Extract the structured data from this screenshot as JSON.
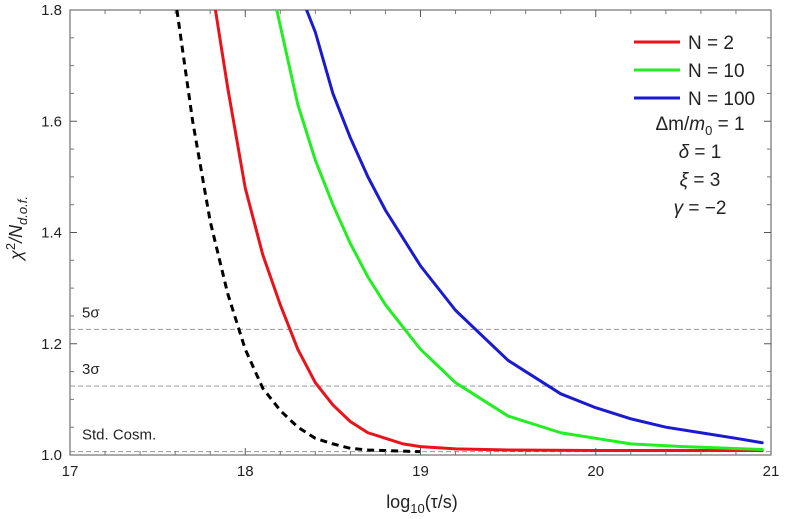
{
  "chart_data": {
    "type": "line",
    "xlabel_parts": {
      "pre": "log",
      "sub": "10",
      "post": "(τ/s)"
    },
    "ylabel_parts": {
      "base": "χ",
      "sup": "2",
      "slash": "/N",
      "sub": "d.o.f."
    },
    "xlim": [
      17,
      21
    ],
    "ylim": [
      1.0,
      1.8
    ],
    "x_ticks": [
      "17",
      "18",
      "19",
      "20",
      "21"
    ],
    "y_ticks": [
      "1.0",
      "1.2",
      "1.4",
      "1.6",
      "1.8"
    ],
    "reference_lines": [
      {
        "label": "5σ",
        "y": 1.226
      },
      {
        "label": "3σ",
        "y": 1.124
      },
      {
        "label": "Std. Cosm.",
        "y": 1.006
      }
    ],
    "series": [
      {
        "name": "N = 2",
        "color": "#e8131b",
        "dashed": false,
        "points": [
          [
            17.83,
            1.8
          ],
          [
            17.9,
            1.66
          ],
          [
            18.0,
            1.48
          ],
          [
            18.1,
            1.36
          ],
          [
            18.2,
            1.27
          ],
          [
            18.3,
            1.19
          ],
          [
            18.4,
            1.13
          ],
          [
            18.5,
            1.09
          ],
          [
            18.6,
            1.06
          ],
          [
            18.7,
            1.04
          ],
          [
            18.8,
            1.03
          ],
          [
            18.9,
            1.02
          ],
          [
            19.0,
            1.015
          ],
          [
            19.2,
            1.011
          ],
          [
            19.5,
            1.009
          ],
          [
            20.0,
            1.008
          ],
          [
            20.5,
            1.008
          ],
          [
            20.95,
            1.008
          ]
        ]
      },
      {
        "name": "N = 10",
        "color": "#22ee22",
        "dashed": false,
        "points": [
          [
            18.18,
            1.8
          ],
          [
            18.3,
            1.63
          ],
          [
            18.4,
            1.53
          ],
          [
            18.5,
            1.45
          ],
          [
            18.6,
            1.38
          ],
          [
            18.7,
            1.32
          ],
          [
            18.8,
            1.27
          ],
          [
            18.9,
            1.23
          ],
          [
            19.0,
            1.19
          ],
          [
            19.1,
            1.16
          ],
          [
            19.2,
            1.13
          ],
          [
            19.3,
            1.11
          ],
          [
            19.4,
            1.09
          ],
          [
            19.5,
            1.07
          ],
          [
            19.6,
            1.06
          ],
          [
            19.8,
            1.04
          ],
          [
            20.0,
            1.03
          ],
          [
            20.2,
            1.02
          ],
          [
            20.5,
            1.015
          ],
          [
            20.95,
            1.01
          ]
        ]
      },
      {
        "name": "N = 100",
        "color": "#1a1ad0",
        "dashed": false,
        "points": [
          [
            18.35,
            1.8
          ],
          [
            18.4,
            1.76
          ],
          [
            18.5,
            1.65
          ],
          [
            18.6,
            1.57
          ],
          [
            18.7,
            1.5
          ],
          [
            18.8,
            1.44
          ],
          [
            18.9,
            1.39
          ],
          [
            19.0,
            1.34
          ],
          [
            19.1,
            1.3
          ],
          [
            19.2,
            1.26
          ],
          [
            19.3,
            1.23
          ],
          [
            19.4,
            1.2
          ],
          [
            19.5,
            1.17
          ],
          [
            19.6,
            1.15
          ],
          [
            19.7,
            1.13
          ],
          [
            19.8,
            1.11
          ],
          [
            20.0,
            1.085
          ],
          [
            20.2,
            1.065
          ],
          [
            20.4,
            1.05
          ],
          [
            20.6,
            1.04
          ],
          [
            20.8,
            1.03
          ],
          [
            20.95,
            1.022
          ]
        ]
      },
      {
        "name": "",
        "color": "#000000",
        "dashed": true,
        "points": [
          [
            17.61,
            1.8
          ],
          [
            17.7,
            1.6
          ],
          [
            17.8,
            1.42
          ],
          [
            17.9,
            1.29
          ],
          [
            18.0,
            1.19
          ],
          [
            18.1,
            1.12
          ],
          [
            18.2,
            1.08
          ],
          [
            18.3,
            1.05
          ],
          [
            18.4,
            1.03
          ],
          [
            18.5,
            1.02
          ],
          [
            18.6,
            1.012
          ],
          [
            18.7,
            1.009
          ],
          [
            18.9,
            1.007
          ],
          [
            19.0,
            1.006
          ]
        ]
      }
    ],
    "legend_placement": "top-right",
    "parameters": [
      {
        "pre": "Δm/",
        "it": "m",
        "sub": "0",
        "post": " = 1"
      },
      {
        "pre": "",
        "it": "δ",
        "sub": "",
        "post": " = 1"
      },
      {
        "pre": "",
        "it": "ξ",
        "sub": "",
        "post": " = 3"
      },
      {
        "pre": "",
        "it": "γ",
        "sub": "",
        "post": " = −2"
      }
    ]
  }
}
